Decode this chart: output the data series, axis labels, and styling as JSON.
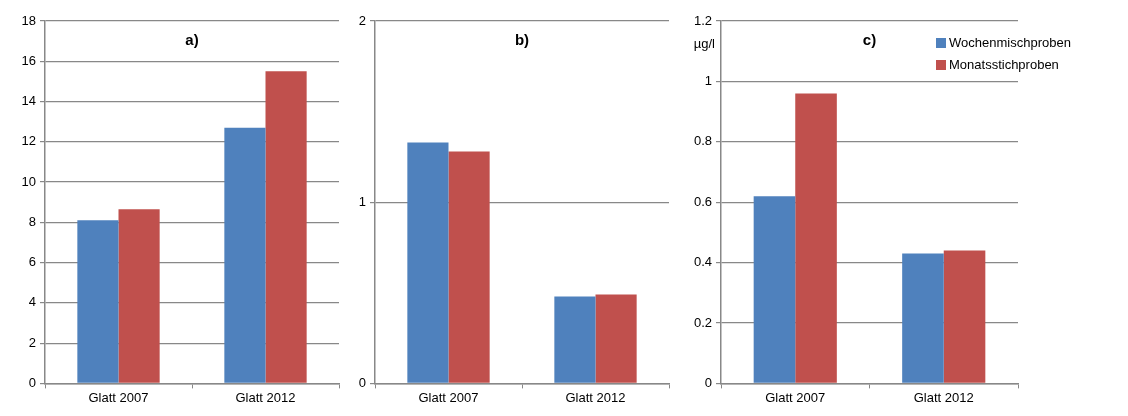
{
  "chart_data": [
    {
      "type": "bar",
      "title": "a)",
      "categories": [
        "Glatt 2007",
        "Glatt 2012"
      ],
      "series": [
        {
          "color": "#4f81bd",
          "values": [
            8.1,
            12.7
          ]
        },
        {
          "color": "#c0504d",
          "values": [
            8.65,
            15.5
          ]
        }
      ],
      "ylim": [
        0,
        18
      ],
      "yticks": [
        0,
        2,
        4,
        6,
        8,
        10,
        12,
        14,
        16,
        18
      ],
      "grid": "y"
    },
    {
      "type": "bar",
      "title": "b)",
      "categories": [
        "Glatt 2007",
        "Glatt 2012"
      ],
      "series": [
        {
          "color": "#4f81bd",
          "values": [
            1.33,
            0.48
          ]
        },
        {
          "color": "#c0504d",
          "values": [
            1.28,
            0.49
          ]
        }
      ],
      "ylim": [
        0,
        2
      ],
      "yticks": [
        0,
        1,
        2
      ],
      "grid": "y"
    },
    {
      "type": "bar",
      "title": "c)",
      "ylabel": "µg/l",
      "categories": [
        "Glatt 2007",
        "Glatt 2012"
      ],
      "series": [
        {
          "name": "Wochenmischproben",
          "color": "#4f81bd",
          "values": [
            0.62,
            0.43
          ]
        },
        {
          "name": "Monatsstichproben",
          "color": "#c0504d",
          "values": [
            0.96,
            0.44
          ]
        }
      ],
      "ylim": [
        0,
        1.2
      ],
      "yticks": [
        0,
        0.2,
        0.4,
        0.6,
        0.8,
        1,
        1.2
      ],
      "grid": "y",
      "legend": "top right"
    }
  ]
}
